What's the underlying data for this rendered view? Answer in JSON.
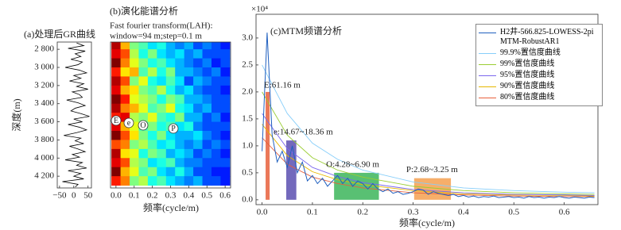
{
  "chart_data": [
    {
      "type": "line",
      "orientation": "vertical",
      "title": "(a)处理后GR曲线",
      "ylabel": "深度(m)",
      "x": [
        2730,
        2760,
        2790,
        2820,
        2850,
        2880,
        2910,
        2940,
        2970,
        3000,
        3030,
        3060,
        3090,
        3120,
        3150,
        3180,
        3210,
        3240,
        3270,
        3300,
        3330,
        3360,
        3390,
        3420,
        3450,
        3480,
        3510,
        3540,
        3570,
        3600,
        3630,
        3660,
        3690,
        3720,
        3750,
        3780,
        3810,
        3840,
        3870,
        3900,
        3930,
        3960,
        3990,
        4020,
        4050,
        4080,
        4110,
        4140,
        4170,
        4200,
        4230,
        4260,
        4290,
        4320
      ],
      "values": [
        10,
        35,
        -20,
        40,
        5,
        25,
        -10,
        30,
        15,
        -30,
        20,
        45,
        0,
        25,
        -15,
        35,
        10,
        50,
        -5,
        20,
        30,
        -25,
        15,
        40,
        5,
        -10,
        25,
        55,
        0,
        30,
        -20,
        20,
        45,
        10,
        -35,
        25,
        5,
        35,
        -15,
        15,
        40,
        -5,
        20,
        -30,
        30,
        10,
        45,
        -20,
        25,
        0,
        35,
        -40,
        15,
        5
      ],
      "color": "#000000",
      "ylim": [
        4330,
        2720
      ],
      "yticks": [
        {
          "value": 2800,
          "label": "2 800"
        },
        {
          "value": 3000,
          "label": "3 000"
        },
        {
          "value": 3200,
          "label": "3 200"
        },
        {
          "value": 3400,
          "label": "3 400"
        },
        {
          "value": 3600,
          "label": "3 600"
        },
        {
          "value": 3800,
          "label": "3 800"
        },
        {
          "value": 4000,
          "label": "4 000"
        },
        {
          "value": 4200,
          "label": "4 200"
        }
      ],
      "xlim": [
        -58,
        62
      ],
      "xticks": [
        {
          "value": -50,
          "label": "−50"
        },
        0,
        50
      ]
    },
    {
      "type": "heatmap",
      "title": "(b)演化能谱分析",
      "subtitle": [
        "Fast fourier transform(LAH):",
        "window=94 m;step=0.1 m"
      ],
      "xlabel": "频率(cycle/m)",
      "x": [
        0,
        0.05,
        0.1,
        0.15,
        0.2,
        0.25,
        0.3,
        0.35,
        0.4,
        0.45,
        0.5,
        0.55,
        0.6
      ],
      "y": [
        2750,
        2850,
        2950,
        3050,
        3150,
        3250,
        3350,
        3450,
        3550,
        3650,
        3750,
        3850,
        3950,
        4050,
        4150,
        4250
      ],
      "z": [
        [
          0.95,
          0.7,
          0.5,
          0.45,
          0.35,
          0.4,
          0.3,
          0.25,
          0.3,
          0.2,
          0.25,
          0.2,
          0.15
        ],
        [
          0.9,
          0.8,
          0.55,
          0.4,
          0.5,
          0.35,
          0.3,
          0.35,
          0.25,
          0.3,
          0.2,
          0.2,
          0.2
        ],
        [
          1.0,
          0.75,
          0.6,
          0.5,
          0.4,
          0.45,
          0.35,
          0.3,
          0.25,
          0.2,
          0.25,
          0.15,
          0.2
        ],
        [
          0.85,
          0.65,
          0.7,
          0.45,
          0.55,
          0.4,
          0.5,
          0.3,
          0.3,
          0.25,
          0.2,
          0.25,
          0.15
        ],
        [
          0.95,
          0.8,
          0.5,
          0.6,
          0.4,
          0.35,
          0.45,
          0.35,
          0.2,
          0.3,
          0.25,
          0.2,
          0.2
        ],
        [
          0.9,
          0.7,
          0.65,
          0.5,
          0.45,
          0.55,
          0.4,
          0.3,
          0.35,
          0.25,
          0.2,
          0.2,
          0.15
        ],
        [
          1.0,
          0.85,
          0.6,
          0.55,
          0.5,
          0.4,
          0.5,
          0.45,
          0.3,
          0.3,
          0.25,
          0.2,
          0.2
        ],
        [
          0.95,
          0.75,
          0.7,
          0.6,
          0.45,
          0.5,
          0.6,
          0.4,
          0.35,
          0.25,
          0.3,
          0.2,
          0.2
        ],
        [
          0.85,
          0.9,
          0.55,
          0.5,
          0.6,
          0.45,
          0.4,
          0.5,
          0.3,
          0.3,
          0.2,
          0.25,
          0.15
        ],
        [
          0.9,
          0.7,
          0.6,
          0.45,
          0.5,
          0.4,
          0.45,
          0.35,
          0.4,
          0.25,
          0.2,
          0.2,
          0.2
        ],
        [
          1.0,
          0.8,
          0.65,
          0.5,
          0.4,
          0.5,
          0.35,
          0.3,
          0.3,
          0.35,
          0.25,
          0.2,
          0.15
        ],
        [
          0.8,
          0.75,
          0.5,
          0.55,
          0.45,
          0.35,
          0.4,
          0.3,
          0.25,
          0.3,
          0.2,
          0.25,
          0.2
        ],
        [
          0.95,
          0.65,
          0.6,
          0.4,
          0.5,
          0.45,
          0.3,
          0.35,
          0.3,
          0.2,
          0.25,
          0.2,
          0.15
        ],
        [
          0.9,
          0.8,
          0.55,
          0.5,
          0.35,
          0.4,
          0.45,
          0.3,
          0.25,
          0.25,
          0.2,
          0.2,
          0.2
        ],
        [
          1.0,
          0.7,
          0.6,
          0.45,
          0.5,
          0.35,
          0.3,
          0.4,
          0.3,
          0.2,
          0.2,
          0.15,
          0.15
        ],
        [
          0.85,
          0.75,
          0.5,
          0.55,
          0.4,
          0.45,
          0.35,
          0.3,
          0.25,
          0.3,
          0.2,
          0.2,
          0.15
        ]
      ],
      "annotations": [
        "E",
        "e",
        "O",
        "P"
      ],
      "ylim": [
        4330,
        2720
      ],
      "xlim": [
        -0.03,
        0.63
      ],
      "xticks": [
        {
          "value": 0,
          "label": "0.0"
        },
        0.1,
        0.2,
        0.3,
        0.4,
        0.5,
        0.6
      ]
    },
    {
      "type": "line",
      "title": "(c)MTM频谱分析",
      "multiplier": "×10⁴",
      "xlabel": "频率(cycle/m)",
      "series": [
        {
          "name": "H2井-566.825-LOWESS-2piMTM-RobustAR1",
          "color": "#1f5fbf",
          "x": [
            0,
            0.01,
            0.02,
            0.03,
            0.04,
            0.05,
            0.06,
            0.07,
            0.08,
            0.09,
            0.1,
            0.11,
            0.12,
            0.13,
            0.14,
            0.15,
            0.16,
            0.17,
            0.18,
            0.19,
            0.2,
            0.21,
            0.22,
            0.23,
            0.24,
            0.25,
            0.26,
            0.27,
            0.28,
            0.29,
            0.3,
            0.31,
            0.32,
            0.33,
            0.34,
            0.35,
            0.36,
            0.37,
            0.38,
            0.39,
            0.4,
            0.41,
            0.42,
            0.43,
            0.44,
            0.45,
            0.46,
            0.47,
            0.48,
            0.49,
            0.5,
            0.51,
            0.52,
            0.53,
            0.54,
            0.55,
            0.56,
            0.57,
            0.58,
            0.59,
            0.6,
            0.61,
            0.62,
            0.63,
            0.64,
            0.65,
            0.66
          ],
          "values": [
            0.9,
            3.1,
            1.2,
            0.7,
            0.9,
            0.6,
            1.0,
            0.5,
            0.7,
            0.35,
            0.45,
            0.3,
            0.4,
            0.25,
            0.35,
            0.45,
            0.3,
            0.4,
            0.25,
            0.35,
            0.3,
            0.2,
            0.3,
            0.2,
            0.15,
            0.2,
            0.12,
            0.15,
            0.1,
            0.12,
            0.15,
            0.2,
            0.18,
            0.1,
            0.15,
            0.12,
            0.1,
            0.08,
            0.1,
            0.06,
            0.08,
            0.05,
            0.07,
            0.04,
            0.06,
            0.05,
            0.07,
            0.04,
            0.05,
            0.06,
            0.04,
            0.05,
            0.03,
            0.06,
            0.04,
            0.05,
            0.03,
            0.05,
            0.04,
            0.06,
            0.04,
            0.03,
            0.05,
            0.04,
            0.03,
            0.05,
            0.04
          ]
        },
        {
          "name": "99.9%置信度曲线",
          "color": "#87cefa",
          "x": [
            0,
            0.05,
            0.1,
            0.15,
            0.2,
            0.3,
            0.4,
            0.5,
            0.6,
            0.66
          ],
          "values": [
            2.5,
            1.6,
            1.05,
            0.75,
            0.55,
            0.33,
            0.22,
            0.17,
            0.14,
            0.13
          ]
        },
        {
          "name": "99%置信度曲线",
          "color": "#9acd32",
          "x": [
            0,
            0.05,
            0.1,
            0.15,
            0.2,
            0.3,
            0.4,
            0.5,
            0.6,
            0.66
          ],
          "values": [
            2.0,
            1.2,
            0.78,
            0.55,
            0.42,
            0.25,
            0.17,
            0.13,
            0.11,
            0.1
          ]
        },
        {
          "name": "95%置信度曲线",
          "color": "#7b68ee",
          "x": [
            0,
            0.05,
            0.1,
            0.15,
            0.2,
            0.3,
            0.4,
            0.5,
            0.6,
            0.66
          ],
          "values": [
            1.6,
            0.95,
            0.6,
            0.43,
            0.32,
            0.19,
            0.13,
            0.1,
            0.09,
            0.08
          ]
        },
        {
          "name": "90%置信度曲线",
          "color": "#e6b800",
          "x": [
            0,
            0.05,
            0.1,
            0.15,
            0.2,
            0.3,
            0.4,
            0.5,
            0.6,
            0.66
          ],
          "values": [
            1.4,
            0.82,
            0.52,
            0.37,
            0.28,
            0.17,
            0.11,
            0.09,
            0.08,
            0.07
          ]
        },
        {
          "name": "80%置信度曲线",
          "color": "#e8603c",
          "x": [
            0,
            0.05,
            0.1,
            0.15,
            0.2,
            0.3,
            0.4,
            0.5,
            0.6,
            0.66
          ],
          "values": [
            1.15,
            0.66,
            0.42,
            0.3,
            0.22,
            0.13,
            0.09,
            0.07,
            0.06,
            0.06
          ]
        }
      ],
      "highlights": [
        {
          "label": "E:61.16 m",
          "x0": 0.007,
          "x1": 0.015,
          "top": 2.0,
          "color": "#e8603c"
        },
        {
          "label": "e:14.67~18.36 m",
          "x0": 0.048,
          "x1": 0.068,
          "top": 1.1,
          "color": "#5a4fb0"
        },
        {
          "label": "O:4.28~6.90 m",
          "x0": 0.143,
          "x1": 0.232,
          "top": 0.5,
          "color": "#3cb55a"
        },
        {
          "label": "P:2.68~3.25 m",
          "x0": 0.302,
          "x1": 0.375,
          "top": 0.4,
          "color": "#f5a050"
        }
      ],
      "xlim": [
        -0.012,
        0.667
      ],
      "ylim": [
        -0.09,
        3.44
      ],
      "xticks": [
        {
          "value": 0,
          "label": "0.0"
        },
        0.1,
        0.2,
        0.3,
        0.4,
        0.5,
        0.6
      ],
      "yticks": [
        {
          "value": 0,
          "label": "0.0"
        },
        0.5,
        {
          "value": 1,
          "label": "1.0"
        },
        1.5,
        {
          "value": 2,
          "label": "2.0"
        },
        2.5,
        {
          "value": 3,
          "label": "3.0"
        }
      ]
    }
  ]
}
